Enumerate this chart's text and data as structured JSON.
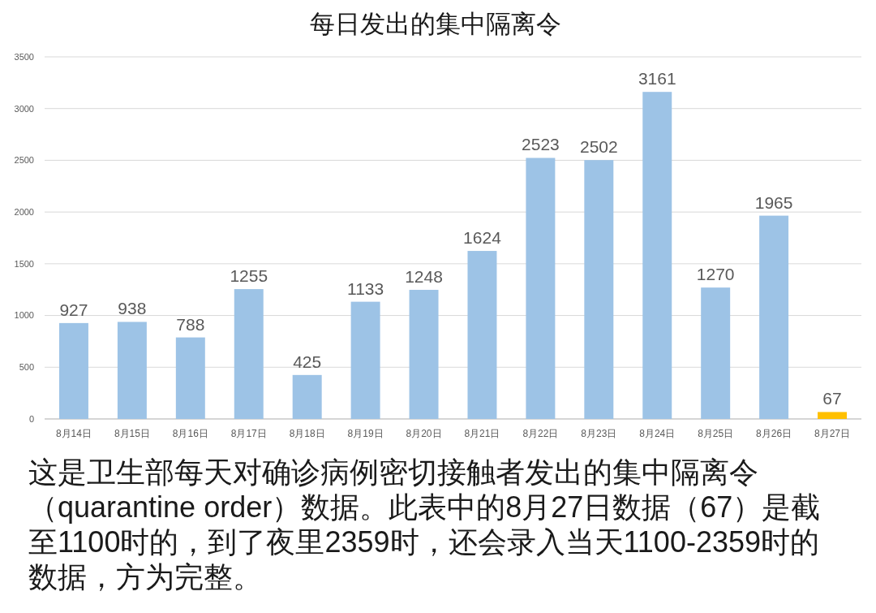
{
  "chart_data": {
    "type": "bar",
    "title": "每日发出的集中隔离令",
    "categories": [
      "8月14日",
      "8月15日",
      "8月16日",
      "8月17日",
      "8月18日",
      "8月19日",
      "8月20日",
      "8月21日",
      "8月22日",
      "8月23日",
      "8月24日",
      "8月25日",
      "8月26日",
      "8月27日"
    ],
    "values": [
      927,
      938,
      788,
      1255,
      425,
      1133,
      1248,
      1624,
      2523,
      2502,
      3161,
      1270,
      1965,
      67
    ],
    "colors": [
      "#9dc3e6",
      "#9dc3e6",
      "#9dc3e6",
      "#9dc3e6",
      "#9dc3e6",
      "#9dc3e6",
      "#9dc3e6",
      "#9dc3e6",
      "#9dc3e6",
      "#9dc3e6",
      "#9dc3e6",
      "#9dc3e6",
      "#9dc3e6",
      "#ffc000"
    ],
    "ylim": [
      0,
      3500
    ],
    "yticks": [
      0,
      500,
      1000,
      1500,
      2000,
      2500,
      3000,
      3500
    ],
    "grid": "y",
    "data_labels": true,
    "annotations": [
      "这是卫生部每天对确诊病例密切接触者发出的集中隔离令（quarantine order）数据。此表中的8月27日数据（67）是截至1100时的，到了夜里2359时，还会录入当天1100-2359时的数据，方为完整。"
    ]
  }
}
